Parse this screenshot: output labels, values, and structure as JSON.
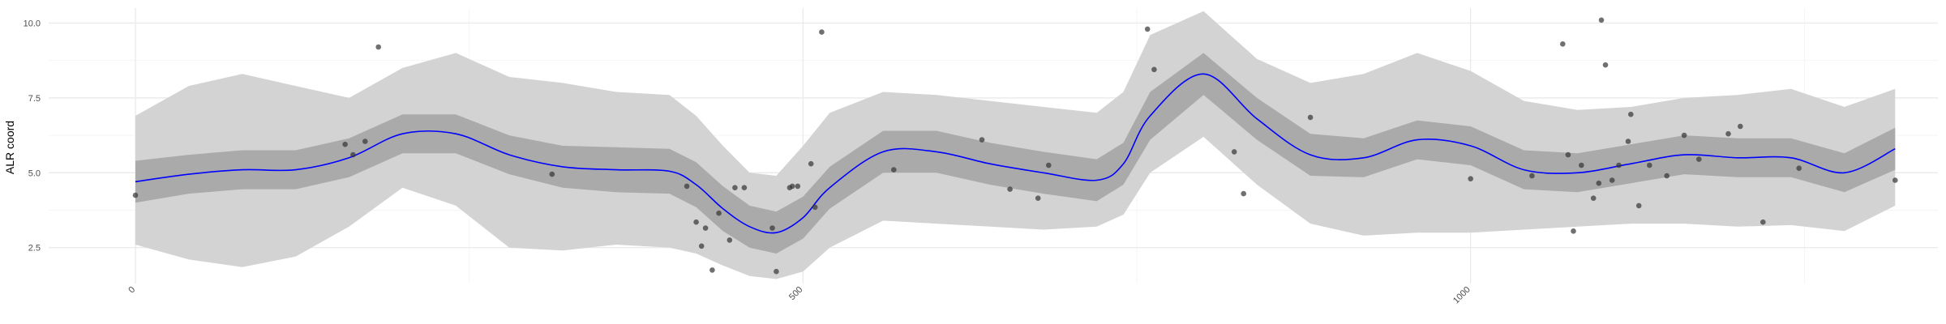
{
  "chart_data": {
    "type": "line",
    "title": "",
    "xlabel": "",
    "ylabel": "ALR coord",
    "xlim": [
      -65,
      1350
    ],
    "ylim": [
      1.3,
      10.5
    ],
    "x_ticks": [
      0,
      500,
      1000
    ],
    "x_tick_labels": [
      "0",
      "500",
      "1000"
    ],
    "y_ticks": [
      2.5,
      5.0,
      7.5,
      10.0
    ],
    "y_tick_labels": [
      "2.5",
      "5.0",
      "7.5",
      "10.0"
    ],
    "grid": true,
    "x_tick_label_rotation_deg": -45,
    "colors": {
      "mean_line": "#0000ff",
      "inner_band": "#aaaaaa",
      "outer_band": "#d3d3d3",
      "points": "#333333",
      "grid_major": "#ebebeb",
      "grid_minor": "#f5f5f5"
    },
    "series": [
      {
        "kind": "line",
        "x": [
          0,
          40,
          80,
          120,
          160,
          200,
          240,
          280,
          320,
          360,
          400,
          420,
          440,
          460,
          480,
          500,
          520,
          560,
          600,
          640,
          680,
          720,
          740,
          760,
          800,
          840,
          880,
          920,
          960,
          1000,
          1040,
          1080,
          1120,
          1160,
          1200,
          1240,
          1280,
          1318
        ],
        "y": [
          4.7,
          4.95,
          5.1,
          5.1,
          5.5,
          6.3,
          6.3,
          5.6,
          5.2,
          5.1,
          5.05,
          4.6,
          3.8,
          3.2,
          3.0,
          3.5,
          4.5,
          5.7,
          5.7,
          5.3,
          5.0,
          4.75,
          5.3,
          6.9,
          8.3,
          6.8,
          5.6,
          5.5,
          6.1,
          5.9,
          5.1,
          5.0,
          5.3,
          5.6,
          5.5,
          5.5,
          5.0,
          5.8
        ]
      },
      {
        "kind": "band",
        "name": "inner",
        "x": [
          0,
          40,
          80,
          120,
          160,
          200,
          240,
          280,
          320,
          360,
          400,
          420,
          440,
          460,
          480,
          500,
          520,
          560,
          600,
          640,
          680,
          720,
          740,
          760,
          800,
          840,
          880,
          920,
          960,
          1000,
          1040,
          1080,
          1120,
          1160,
          1200,
          1240,
          1280,
          1318
        ],
        "lower": [
          4.0,
          4.3,
          4.45,
          4.45,
          4.85,
          5.65,
          5.65,
          4.95,
          4.5,
          4.35,
          4.3,
          3.85,
          3.05,
          2.5,
          2.3,
          2.8,
          3.8,
          5.0,
          5.0,
          4.6,
          4.3,
          4.05,
          4.6,
          6.1,
          7.6,
          6.1,
          4.9,
          4.85,
          5.45,
          5.25,
          4.45,
          4.35,
          4.65,
          4.95,
          4.85,
          4.85,
          4.35,
          5.1
        ],
        "upper": [
          5.4,
          5.6,
          5.75,
          5.75,
          6.15,
          6.95,
          6.95,
          6.25,
          5.9,
          5.85,
          5.8,
          5.35,
          4.55,
          3.9,
          3.7,
          4.2,
          5.2,
          6.4,
          6.4,
          6.0,
          5.7,
          5.45,
          6.0,
          7.7,
          9.0,
          7.5,
          6.3,
          6.15,
          6.75,
          6.55,
          5.75,
          5.65,
          5.95,
          6.25,
          6.15,
          6.15,
          5.65,
          6.5
        ]
      },
      {
        "kind": "band",
        "name": "outer",
        "x": [
          0,
          40,
          80,
          120,
          160,
          200,
          240,
          280,
          320,
          360,
          400,
          420,
          440,
          460,
          480,
          500,
          520,
          560,
          600,
          640,
          680,
          720,
          740,
          760,
          800,
          840,
          880,
          920,
          960,
          1000,
          1040,
          1080,
          1120,
          1160,
          1200,
          1240,
          1280,
          1318
        ],
        "lower": [
          2.6,
          2.1,
          1.85,
          2.2,
          3.2,
          4.5,
          3.9,
          2.5,
          2.4,
          2.6,
          2.5,
          2.3,
          1.9,
          1.55,
          1.45,
          1.7,
          2.5,
          3.4,
          3.3,
          3.2,
          3.1,
          3.2,
          3.6,
          5.0,
          6.2,
          4.6,
          3.3,
          2.9,
          3.0,
          3.0,
          3.1,
          3.2,
          3.3,
          3.3,
          3.2,
          3.25,
          3.05,
          3.9
        ],
        "upper": [
          6.9,
          7.9,
          8.3,
          7.9,
          7.5,
          8.5,
          9.0,
          8.2,
          8.0,
          7.7,
          7.6,
          6.9,
          5.9,
          5.0,
          4.9,
          5.9,
          7.0,
          7.7,
          7.6,
          7.4,
          7.2,
          7.0,
          7.7,
          9.6,
          10.4,
          8.8,
          8.0,
          8.3,
          9.0,
          8.4,
          7.4,
          7.1,
          7.2,
          7.5,
          7.6,
          7.8,
          7.2,
          7.8
        ]
      },
      {
        "kind": "points",
        "x": [
          0,
          157,
          163,
          172,
          182,
          312,
          413,
          420,
          424,
          427,
          432,
          437,
          445,
          449,
          456,
          477,
          480,
          490,
          492,
          496,
          506,
          509,
          514,
          568,
          634,
          655,
          676,
          684,
          758,
          763,
          823,
          830,
          880,
          1000,
          1046,
          1069,
          1073,
          1077,
          1083,
          1092,
          1096,
          1098,
          1101,
          1106,
          1111,
          1118,
          1120,
          1126,
          1134,
          1147,
          1160,
          1171,
          1193,
          1202,
          1219,
          1246,
          1318
        ],
        "y": [
          4.25,
          5.95,
          5.6,
          6.05,
          9.2,
          4.95,
          4.55,
          3.35,
          2.55,
          3.15,
          1.75,
          3.65,
          2.75,
          4.5,
          4.5,
          3.15,
          1.7,
          4.5,
          4.55,
          4.55,
          5.3,
          3.85,
          9.7,
          5.1,
          6.1,
          4.45,
          4.15,
          5.25,
          9.8,
          8.45,
          5.7,
          4.3,
          6.85,
          4.8,
          4.9,
          9.3,
          5.6,
          3.05,
          5.25,
          4.15,
          4.65,
          10.1,
          8.6,
          4.75,
          5.25,
          6.05,
          6.95,
          3.9,
          5.25,
          4.9,
          6.25,
          5.45,
          6.3,
          6.55,
          3.35,
          5.15,
          4.75
        ]
      }
    ]
  }
}
